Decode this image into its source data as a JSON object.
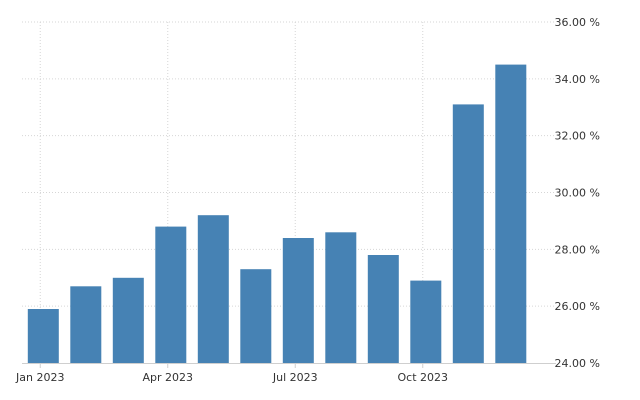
{
  "chart_data": {
    "type": "bar",
    "title": "",
    "xlabel": "",
    "ylabel": "",
    "bar_color": "#4682b4",
    "grid": true,
    "y_axis_side": "right",
    "ylim": [
      24,
      36
    ],
    "yticks": [
      24,
      26,
      28,
      30,
      32,
      34,
      36
    ],
    "ytick_labels": [
      "24.00 %",
      "26.00 %",
      "28.00 %",
      "30.00 %",
      "32.00 %",
      "34.00 %",
      "36.00 %"
    ],
    "categories": [
      "2023-01",
      "2023-02",
      "2023-03",
      "2023-04",
      "2023-05",
      "2023-06",
      "2023-07",
      "2023-08",
      "2023-09",
      "2023-10",
      "2023-11",
      "2023-12"
    ],
    "values": [
      25.9,
      26.7,
      27.0,
      28.8,
      29.2,
      27.3,
      28.4,
      28.6,
      27.8,
      26.9,
      33.1,
      34.5
    ],
    "xticks": [
      {
        "category": "2023-01",
        "label": "Jan 2023"
      },
      {
        "category": "2023-04",
        "label": "Apr 2023"
      },
      {
        "category": "2023-07",
        "label": "Jul 2023"
      },
      {
        "category": "2023-10",
        "label": "Oct 2023"
      }
    ]
  }
}
